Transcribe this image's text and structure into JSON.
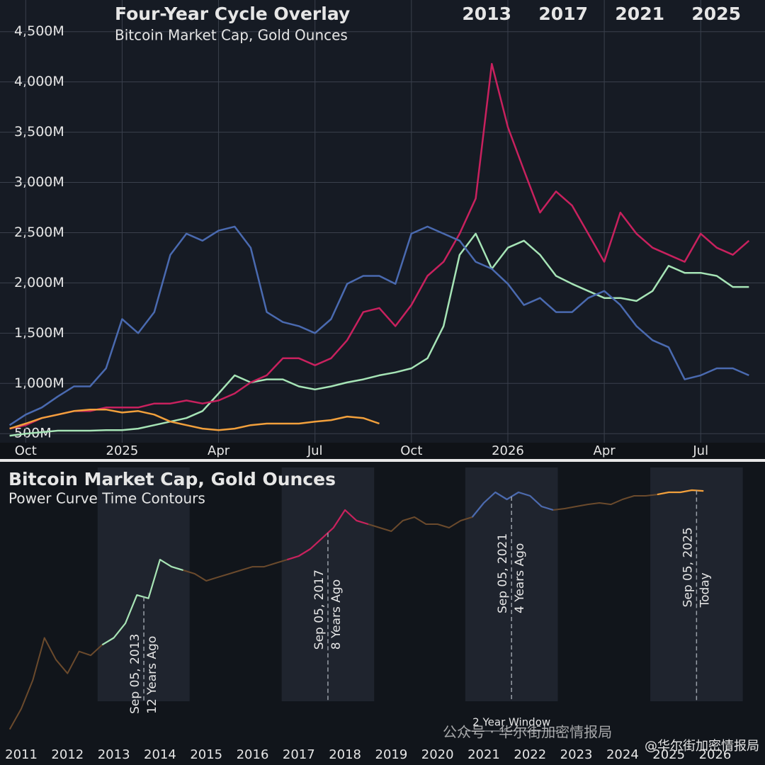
{
  "chart_data": [
    {
      "type": "line",
      "title": "Four-Year Cycle Overlay",
      "subtitle": "Bitcoin Market Cap, Gold Ounces",
      "x": [
        0.5,
        1,
        1.5,
        2,
        2.5,
        3,
        3.5,
        4,
        4.5,
        5,
        5.5,
        6,
        6.5,
        7,
        7.5,
        8,
        8.5,
        9,
        9.5,
        10,
        10.5,
        11,
        11.5,
        12,
        12.5,
        13,
        13.5,
        14,
        14.5,
        15,
        15.5,
        16,
        16.5,
        17,
        17.5,
        18,
        18.5,
        19,
        19.5,
        20,
        20.5,
        21,
        21.5,
        22,
        22.5,
        23,
        23.5
      ],
      "xlim": [
        0.2,
        24
      ],
      "xticks": [
        {
          "value": 1,
          "label": "Oct"
        },
        {
          "value": 4,
          "label": "2025"
        },
        {
          "value": 7,
          "label": "Apr"
        },
        {
          "value": 10,
          "label": "Jul"
        },
        {
          "value": 13,
          "label": "Oct"
        },
        {
          "value": 16,
          "label": "2026"
        },
        {
          "value": 19,
          "label": "Apr"
        },
        {
          "value": 22,
          "label": "Jul"
        }
      ],
      "ylim": [
        410,
        4815
      ],
      "yticks": [
        {
          "value": 500,
          "label": "500M"
        },
        {
          "value": 1000,
          "label": "1,000M"
        },
        {
          "value": 1500,
          "label": "1,500M"
        },
        {
          "value": 2000,
          "label": "2,000M"
        },
        {
          "value": 2500,
          "label": "2,500M"
        },
        {
          "value": 3000,
          "label": "3,000M"
        },
        {
          "value": 3500,
          "label": "3,500M"
        },
        {
          "value": 4000,
          "label": "4,000M"
        },
        {
          "value": 4500,
          "label": "4,500M"
        }
      ],
      "grid": true,
      "legend": "top-right",
      "series": [
        {
          "name": "2013",
          "color": "#a6e4b6",
          "values": [
            480,
            500,
            515,
            530,
            530,
            530,
            535,
            535,
            550,
            585,
            620,
            655,
            725,
            900,
            1080,
            1010,
            1040,
            1040,
            970,
            940,
            970,
            1010,
            1040,
            1080,
            1110,
            1150,
            1250,
            1570,
            2280,
            2490,
            2140,
            2350,
            2420,
            2280,
            2070,
            1990,
            1920,
            1850,
            1850,
            1820,
            1920,
            2170,
            2100,
            2100,
            2070,
            1960,
            1960
          ]
        },
        {
          "name": "2017",
          "color": "#c8215e",
          "values": [
            550,
            585,
            655,
            690,
            725,
            725,
            760,
            760,
            760,
            800,
            800,
            830,
            800,
            830,
            900,
            1010,
            1080,
            1250,
            1250,
            1180,
            1250,
            1430,
            1710,
            1750,
            1570,
            1780,
            2070,
            2210,
            2490,
            2840,
            4180,
            3550,
            3120,
            2700,
            2910,
            2770,
            2490,
            2210,
            2700,
            2490,
            2350,
            2280,
            2210,
            2490,
            2350,
            2280,
            2420
          ]
        },
        {
          "name": "2021",
          "color": "#4a6ab0",
          "values": [
            585,
            690,
            760,
            870,
            970,
            970,
            1150,
            1640,
            1500,
            1710,
            2280,
            2490,
            2420,
            2520,
            2560,
            2350,
            1710,
            1610,
            1570,
            1500,
            1640,
            1990,
            2070,
            2070,
            1990,
            2490,
            2560,
            2490,
            2420,
            2210,
            2140,
            1990,
            1780,
            1850,
            1710,
            1710,
            1850,
            1920,
            1780,
            1570,
            1430,
            1360,
            1040,
            1080,
            1150,
            1150,
            1080
          ]
        },
        {
          "name": "2025",
          "color": "#f2a03c",
          "values": [
            550,
            600,
            655,
            690,
            725,
            740,
            740,
            710,
            725,
            690,
            620,
            585,
            550,
            535,
            550,
            585,
            600,
            600,
            600,
            620,
            635,
            670,
            655,
            600,
            null,
            null,
            null,
            null,
            null,
            null,
            null,
            null,
            null,
            null,
            null,
            null,
            null,
            null,
            null,
            null,
            null,
            null,
            null,
            null,
            null,
            null,
            null
          ]
        }
      ]
    },
    {
      "type": "line",
      "title": "Bitcoin Market Cap, Gold Ounces",
      "subtitle": "Power Curve Time Contours",
      "x": [
        2010.75,
        2011,
        2011.25,
        2011.5,
        2011.75,
        2012,
        2012.25,
        2012.5,
        2012.75,
        2013,
        2013.25,
        2013.5,
        2013.75,
        2014,
        2014.25,
        2014.5,
        2014.75,
        2015,
        2015.25,
        2015.5,
        2015.75,
        2016,
        2016.25,
        2016.5,
        2016.75,
        2017,
        2017.25,
        2017.5,
        2017.75,
        2018,
        2018.25,
        2018.5,
        2018.75,
        2019,
        2019.25,
        2019.5,
        2019.75,
        2020,
        2020.25,
        2020.5,
        2020.75,
        2021,
        2021.25,
        2021.5,
        2021.75,
        2022,
        2022.25,
        2022.5,
        2022.75,
        2023,
        2023.25,
        2023.5,
        2023.75,
        2024,
        2024.25,
        2024.5,
        2024.75,
        2025,
        2025.25,
        2025.5,
        2025.75
      ],
      "values": [
        2.4,
        4.2,
        9.2,
        29,
        16,
        11,
        20,
        18,
        24,
        29,
        43,
        93,
        85,
        244,
        201,
        183,
        166,
        137,
        151,
        166,
        183,
        201,
        201,
        222,
        244,
        269,
        326,
        436,
        582,
        942,
        706,
        641,
        582,
        528,
        706,
        777,
        641,
        641,
        582,
        706,
        777,
        1143,
        1527,
        1259,
        1527,
        1387,
        1038,
        942,
        980,
        1038,
        1099,
        1143,
        1099,
        1259,
        1387,
        1387,
        1439,
        1527,
        1527,
        1618,
        1585
      ],
      "color": "#6b4a2c",
      "xlim": [
        2010.54,
        2027.08
      ],
      "xticks": [
        2011,
        2012,
        2013,
        2014,
        2015,
        2016,
        2017,
        2018,
        2019,
        2020,
        2021,
        2022,
        2023,
        2024,
        2025,
        2026
      ],
      "ylim": [
        1,
        3000
      ],
      "log_scale": true,
      "windows": [
        {
          "range": [
            2012.65,
            2014.64
          ],
          "color": "#a6e4b6"
        },
        {
          "range": [
            2016.63,
            2018.63
          ],
          "color": "#c8215e"
        },
        {
          "range": [
            2020.6,
            2022.6
          ],
          "color": "#4a6ab0"
        },
        {
          "range": [
            2024.6,
            2026.6
          ],
          "color": "#f2a03c"
        }
      ],
      "markers": [
        {
          "x": 2013.65,
          "date": "Sep 05, 2013",
          "note": "12 Years Ago"
        },
        {
          "x": 2017.63,
          "date": "Sep 05, 2017",
          "note": "8 Years Ago"
        },
        {
          "x": 2021.6,
          "date": "Sep 05, 2021",
          "note": "4 Years Ago"
        },
        {
          "x": 2025.6,
          "date": "Sep 05, 2025",
          "note": "Today"
        }
      ],
      "window_label": "2 Year Window"
    }
  ],
  "watermark": [
    "公众号 · 华尔街加密情报局",
    "@华尔街加密情报局"
  ]
}
